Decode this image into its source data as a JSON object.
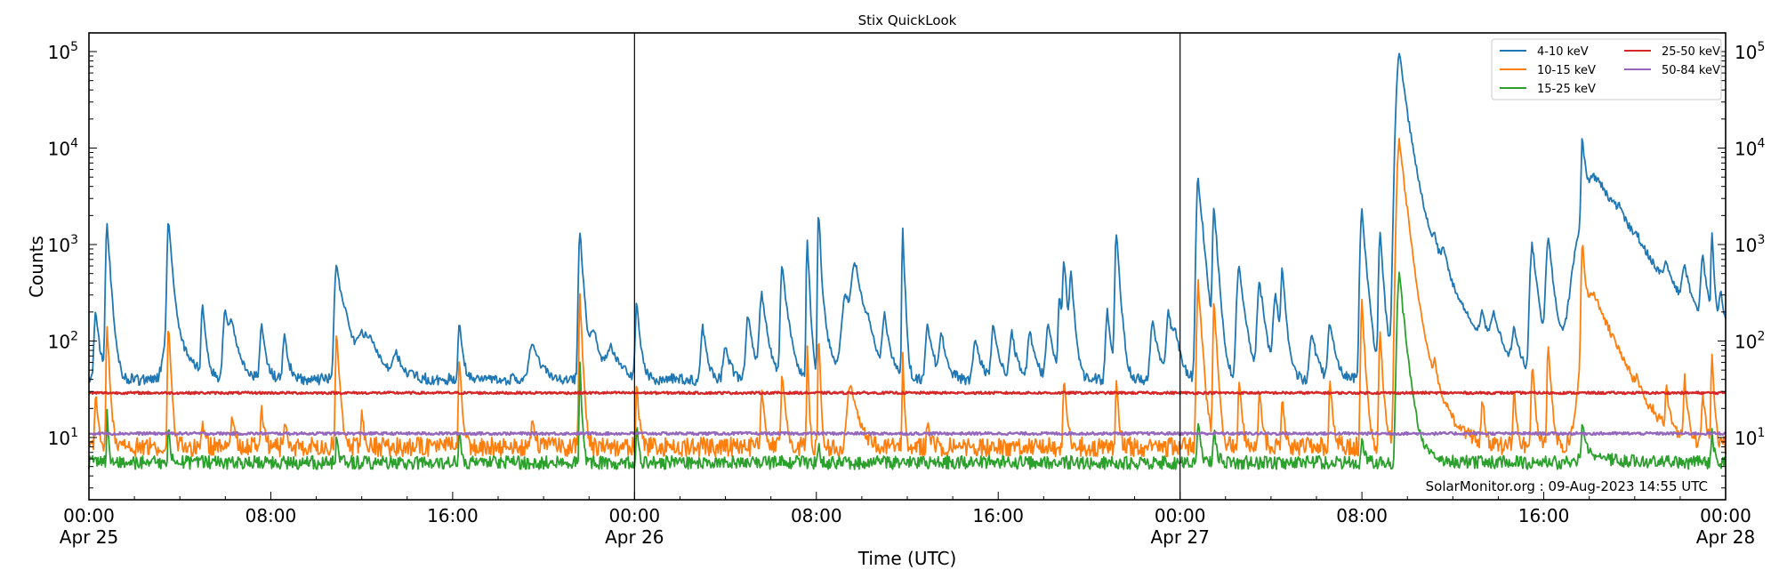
{
  "chart_data": {
    "type": "line",
    "title": "Stix QuickLook",
    "xlabel": "Time (UTC)",
    "ylabel": "Counts",
    "yscale": "log",
    "ylim": [
      2.26,
      155000
    ],
    "xlim_hours": [
      0,
      72
    ],
    "grid": false,
    "legend_position": "upper right",
    "legend_columns": 2,
    "annotation": "SolarMonitor.org : 09-Aug-2023 14:55 UTC",
    "x_ticks": [
      {
        "hour": 0,
        "label": "00:00",
        "sublabel": "Apr 25"
      },
      {
        "hour": 8,
        "label": "08:00",
        "sublabel": ""
      },
      {
        "hour": 16,
        "label": "16:00",
        "sublabel": ""
      },
      {
        "hour": 24,
        "label": "00:00",
        "sublabel": "Apr 26"
      },
      {
        "hour": 32,
        "label": "08:00",
        "sublabel": ""
      },
      {
        "hour": 40,
        "label": "16:00",
        "sublabel": ""
      },
      {
        "hour": 48,
        "label": "00:00",
        "sublabel": "Apr 27"
      },
      {
        "hour": 56,
        "label": "08:00",
        "sublabel": ""
      },
      {
        "hour": 64,
        "label": "16:00",
        "sublabel": ""
      },
      {
        "hour": 72,
        "label": "00:00",
        "sublabel": "Apr 28"
      }
    ],
    "day_boundaries_hours": [
      24,
      48
    ],
    "y_ticks": [
      {
        "exp": 1,
        "base": "10",
        "sup": "1"
      },
      {
        "exp": 2,
        "base": "10",
        "sup": "2"
      },
      {
        "exp": 3,
        "base": "10",
        "sup": "3"
      },
      {
        "exp": 4,
        "base": "10",
        "sup": "4"
      },
      {
        "exp": 5,
        "base": "10",
        "sup": "5"
      }
    ],
    "series": [
      {
        "name": "4-10 keV",
        "color": "#1f77b4",
        "baseline": 40,
        "noise": 0.06,
        "peaks": [
          [
            0.3,
            200,
            0.15
          ],
          [
            0.8,
            1600,
            0.12
          ],
          [
            3.5,
            1600,
            0.12
          ],
          [
            3.6,
            180,
            0.5
          ],
          [
            5.0,
            230,
            0.12
          ],
          [
            6.0,
            200,
            0.2
          ],
          [
            6.3,
            120,
            0.3
          ],
          [
            7.6,
            150,
            0.15
          ],
          [
            8.6,
            120,
            0.15
          ],
          [
            10.9,
            650,
            0.18
          ],
          [
            11.3,
            150,
            0.4
          ],
          [
            12.0,
            100,
            0.4
          ],
          [
            12.4,
            80,
            0.5
          ],
          [
            13.5,
            70,
            0.3
          ],
          [
            16.3,
            160,
            0.12
          ],
          [
            19.5,
            100,
            0.3
          ],
          [
            21.6,
            1400,
            0.12
          ],
          [
            22.2,
            130,
            0.3
          ],
          [
            23.0,
            80,
            0.4
          ],
          [
            24.1,
            250,
            0.12
          ],
          [
            27.0,
            150,
            0.15
          ],
          [
            28.0,
            90,
            0.2
          ],
          [
            29.0,
            180,
            0.2
          ],
          [
            29.6,
            300,
            0.2
          ],
          [
            30.5,
            600,
            0.15
          ],
          [
            30.7,
            90,
            0.3
          ],
          [
            31.6,
            1200,
            0.08
          ],
          [
            32.1,
            2400,
            0.08
          ],
          [
            32.4,
            120,
            0.3
          ],
          [
            33.3,
            300,
            0.35
          ],
          [
            33.7,
            600,
            0.3
          ],
          [
            34.3,
            100,
            0.2
          ],
          [
            35.0,
            180,
            0.2
          ],
          [
            35.8,
            1500,
            0.07
          ],
          [
            36.9,
            150,
            0.2
          ],
          [
            37.5,
            120,
            0.2
          ],
          [
            39.0,
            110,
            0.2
          ],
          [
            39.8,
            140,
            0.2
          ],
          [
            40.6,
            120,
            0.2
          ],
          [
            41.4,
            130,
            0.2
          ],
          [
            42.2,
            150,
            0.2
          ],
          [
            42.7,
            300,
            0.12
          ],
          [
            42.9,
            650,
            0.12
          ],
          [
            43.2,
            500,
            0.12
          ],
          [
            44.8,
            200,
            0.15
          ],
          [
            45.2,
            1300,
            0.12
          ],
          [
            46.8,
            170,
            0.2
          ],
          [
            47.5,
            200,
            0.2
          ],
          [
            47.8,
            100,
            0.2
          ],
          [
            48.8,
            5000,
            0.15
          ],
          [
            49.5,
            2500,
            0.12
          ],
          [
            49.0,
            180,
            0.3
          ],
          [
            50.6,
            600,
            0.2
          ],
          [
            51.5,
            400,
            0.2
          ],
          [
            52.2,
            300,
            0.2
          ],
          [
            52.5,
            500,
            0.12
          ],
          [
            53.8,
            120,
            0.2
          ],
          [
            54.6,
            150,
            0.2
          ],
          [
            56.0,
            2200,
            0.15
          ],
          [
            56.8,
            1300,
            0.12
          ],
          [
            57.65,
            90000,
            0.25
          ],
          [
            58.3,
            2000,
            0.9
          ],
          [
            59.2,
            400,
            0.18
          ],
          [
            59.6,
            400,
            0.2
          ],
          [
            61.3,
            130,
            0.2
          ],
          [
            61.8,
            150,
            0.3
          ],
          [
            62.7,
            120,
            0.2
          ],
          [
            63.5,
            1000,
            0.2
          ],
          [
            64.2,
            1100,
            0.2
          ],
          [
            65.7,
            12000,
            0.1
          ],
          [
            66.3,
            5000,
            1.2
          ],
          [
            67.3,
            400,
            0.2
          ],
          [
            68.1,
            180,
            0.2
          ],
          [
            69.4,
            250,
            0.3
          ],
          [
            70.2,
            400,
            0.25
          ],
          [
            71.0,
            600,
            0.2
          ],
          [
            71.4,
            1200,
            0.08
          ],
          [
            71.8,
            250,
            0.2
          ]
        ]
      },
      {
        "name": "10-15 keV",
        "color": "#ff7f0e",
        "baseline": 8,
        "noise": 0.1,
        "peaks": [
          [
            0.3,
            30,
            0.1
          ],
          [
            0.8,
            150,
            0.08
          ],
          [
            3.5,
            160,
            0.08
          ],
          [
            5.0,
            15,
            0.1
          ],
          [
            6.3,
            18,
            0.1
          ],
          [
            7.6,
            20,
            0.1
          ],
          [
            8.6,
            15,
            0.1
          ],
          [
            10.9,
            120,
            0.1
          ],
          [
            12.0,
            18,
            0.1
          ],
          [
            16.3,
            70,
            0.08
          ],
          [
            19.5,
            15,
            0.1
          ],
          [
            21.6,
            300,
            0.08
          ],
          [
            24.1,
            40,
            0.08
          ],
          [
            29.6,
            30,
            0.1
          ],
          [
            30.5,
            50,
            0.1
          ],
          [
            31.6,
            90,
            0.05
          ],
          [
            32.1,
            120,
            0.06
          ],
          [
            33.5,
            35,
            0.3
          ],
          [
            35.8,
            80,
            0.05
          ],
          [
            36.9,
            15,
            0.1
          ],
          [
            42.9,
            40,
            0.1
          ],
          [
            45.2,
            40,
            0.08
          ],
          [
            48.8,
            400,
            0.12
          ],
          [
            49.5,
            250,
            0.1
          ],
          [
            50.6,
            40,
            0.1
          ],
          [
            51.5,
            30,
            0.1
          ],
          [
            52.5,
            25,
            0.1
          ],
          [
            54.6,
            40,
            0.1
          ],
          [
            56.0,
            250,
            0.1
          ],
          [
            56.8,
            120,
            0.1
          ],
          [
            57.65,
            12000,
            0.2
          ],
          [
            58.1,
            200,
            0.6
          ],
          [
            59.2,
            30,
            0.1
          ],
          [
            61.3,
            25,
            0.1
          ],
          [
            62.7,
            30,
            0.1
          ],
          [
            63.5,
            60,
            0.1
          ],
          [
            64.2,
            90,
            0.1
          ],
          [
            65.7,
            1000,
            0.1
          ],
          [
            66.2,
            300,
            0.8
          ],
          [
            68.1,
            20,
            0.1
          ],
          [
            69.4,
            30,
            0.1
          ],
          [
            70.2,
            40,
            0.1
          ],
          [
            71.0,
            30,
            0.1
          ],
          [
            71.4,
            70,
            0.08
          ]
        ]
      },
      {
        "name": "15-25 keV",
        "color": "#2ca02c",
        "baseline": 5.5,
        "noise": 0.07,
        "peaks": [
          [
            0.8,
            20,
            0.05
          ],
          [
            3.5,
            15,
            0.06
          ],
          [
            10.9,
            12,
            0.06
          ],
          [
            16.3,
            12,
            0.06
          ],
          [
            21.6,
            60,
            0.06
          ],
          [
            24.1,
            14,
            0.06
          ],
          [
            32.1,
            10,
            0.05
          ],
          [
            48.8,
            14,
            0.1
          ],
          [
            49.5,
            12,
            0.1
          ],
          [
            56.0,
            10,
            0.1
          ],
          [
            57.65,
            480,
            0.18
          ],
          [
            58.0,
            14,
            0.5
          ],
          [
            65.7,
            14,
            0.1
          ],
          [
            66.0,
            7,
            0.8
          ],
          [
            71.4,
            12,
            0.08
          ]
        ]
      },
      {
        "name": "25-50 keV",
        "color": "#d62728",
        "baseline": 29,
        "noise": 0.012,
        "peaks": []
      },
      {
        "name": "50-84 keV",
        "color": "#9467bd",
        "baseline": 11,
        "noise": 0.014,
        "peaks": []
      }
    ]
  },
  "legend": {
    "items": [
      {
        "label": "4-10 keV",
        "color": "#1f77b4"
      },
      {
        "label": "10-15 keV",
        "color": "#ff7f0e"
      },
      {
        "label": "15-25 keV",
        "color": "#2ca02c"
      },
      {
        "label": "25-50 keV",
        "color": "#d62728"
      },
      {
        "label": "50-84 keV",
        "color": "#9467bd"
      }
    ]
  }
}
